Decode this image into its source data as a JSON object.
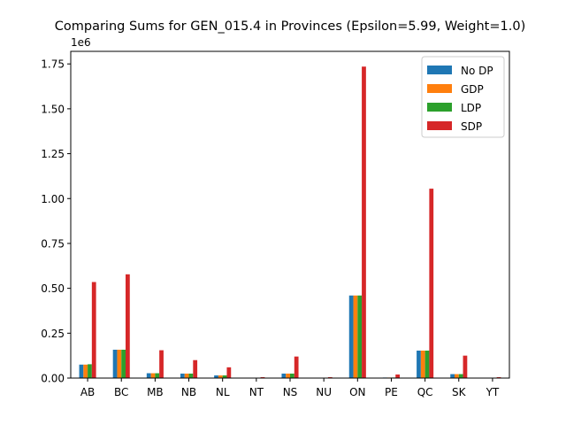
{
  "chart_data": {
    "type": "bar",
    "title": "Comparing Sums for GEN_015.4 in Provinces (Epsilon=5.99, Weight=1.0)",
    "xlabel": "",
    "ylabel": "",
    "y_offset_label": "1e6",
    "ylim": [
      0,
      1.82
    ],
    "yticks": [
      0.0,
      0.25,
      0.5,
      0.75,
      1.0,
      1.25,
      1.5,
      1.75
    ],
    "ytick_labels": [
      "0.00",
      "0.25",
      "0.50",
      "0.75",
      "1.00",
      "1.25",
      "1.50",
      "1.75"
    ],
    "grid": false,
    "legend_position": "upper right",
    "categories": [
      "AB",
      "BC",
      "MB",
      "NB",
      "NL",
      "NT",
      "NS",
      "NU",
      "ON",
      "PE",
      "QC",
      "SK",
      "YT"
    ],
    "series": [
      {
        "name": "No DP",
        "color": "#1f77b4",
        "values": [
          0.075,
          0.158,
          0.027,
          0.025,
          0.015,
          0.002,
          0.025,
          0.001,
          0.46,
          0.003,
          0.153,
          0.022,
          0.001
        ]
      },
      {
        "name": "GDP",
        "color": "#ff7f0e",
        "values": [
          0.075,
          0.158,
          0.027,
          0.025,
          0.015,
          0.002,
          0.025,
          0.001,
          0.46,
          0.003,
          0.153,
          0.022,
          0.001
        ]
      },
      {
        "name": "LDP",
        "color": "#2ca02c",
        "values": [
          0.077,
          0.158,
          0.027,
          0.025,
          0.015,
          0.002,
          0.025,
          0.001,
          0.46,
          0.003,
          0.153,
          0.022,
          0.001
        ]
      },
      {
        "name": "SDP",
        "color": "#d62728",
        "values": [
          0.535,
          0.578,
          0.155,
          0.1,
          0.06,
          0.005,
          0.12,
          0.005,
          1.735,
          0.02,
          1.055,
          0.125,
          0.005
        ]
      }
    ]
  }
}
